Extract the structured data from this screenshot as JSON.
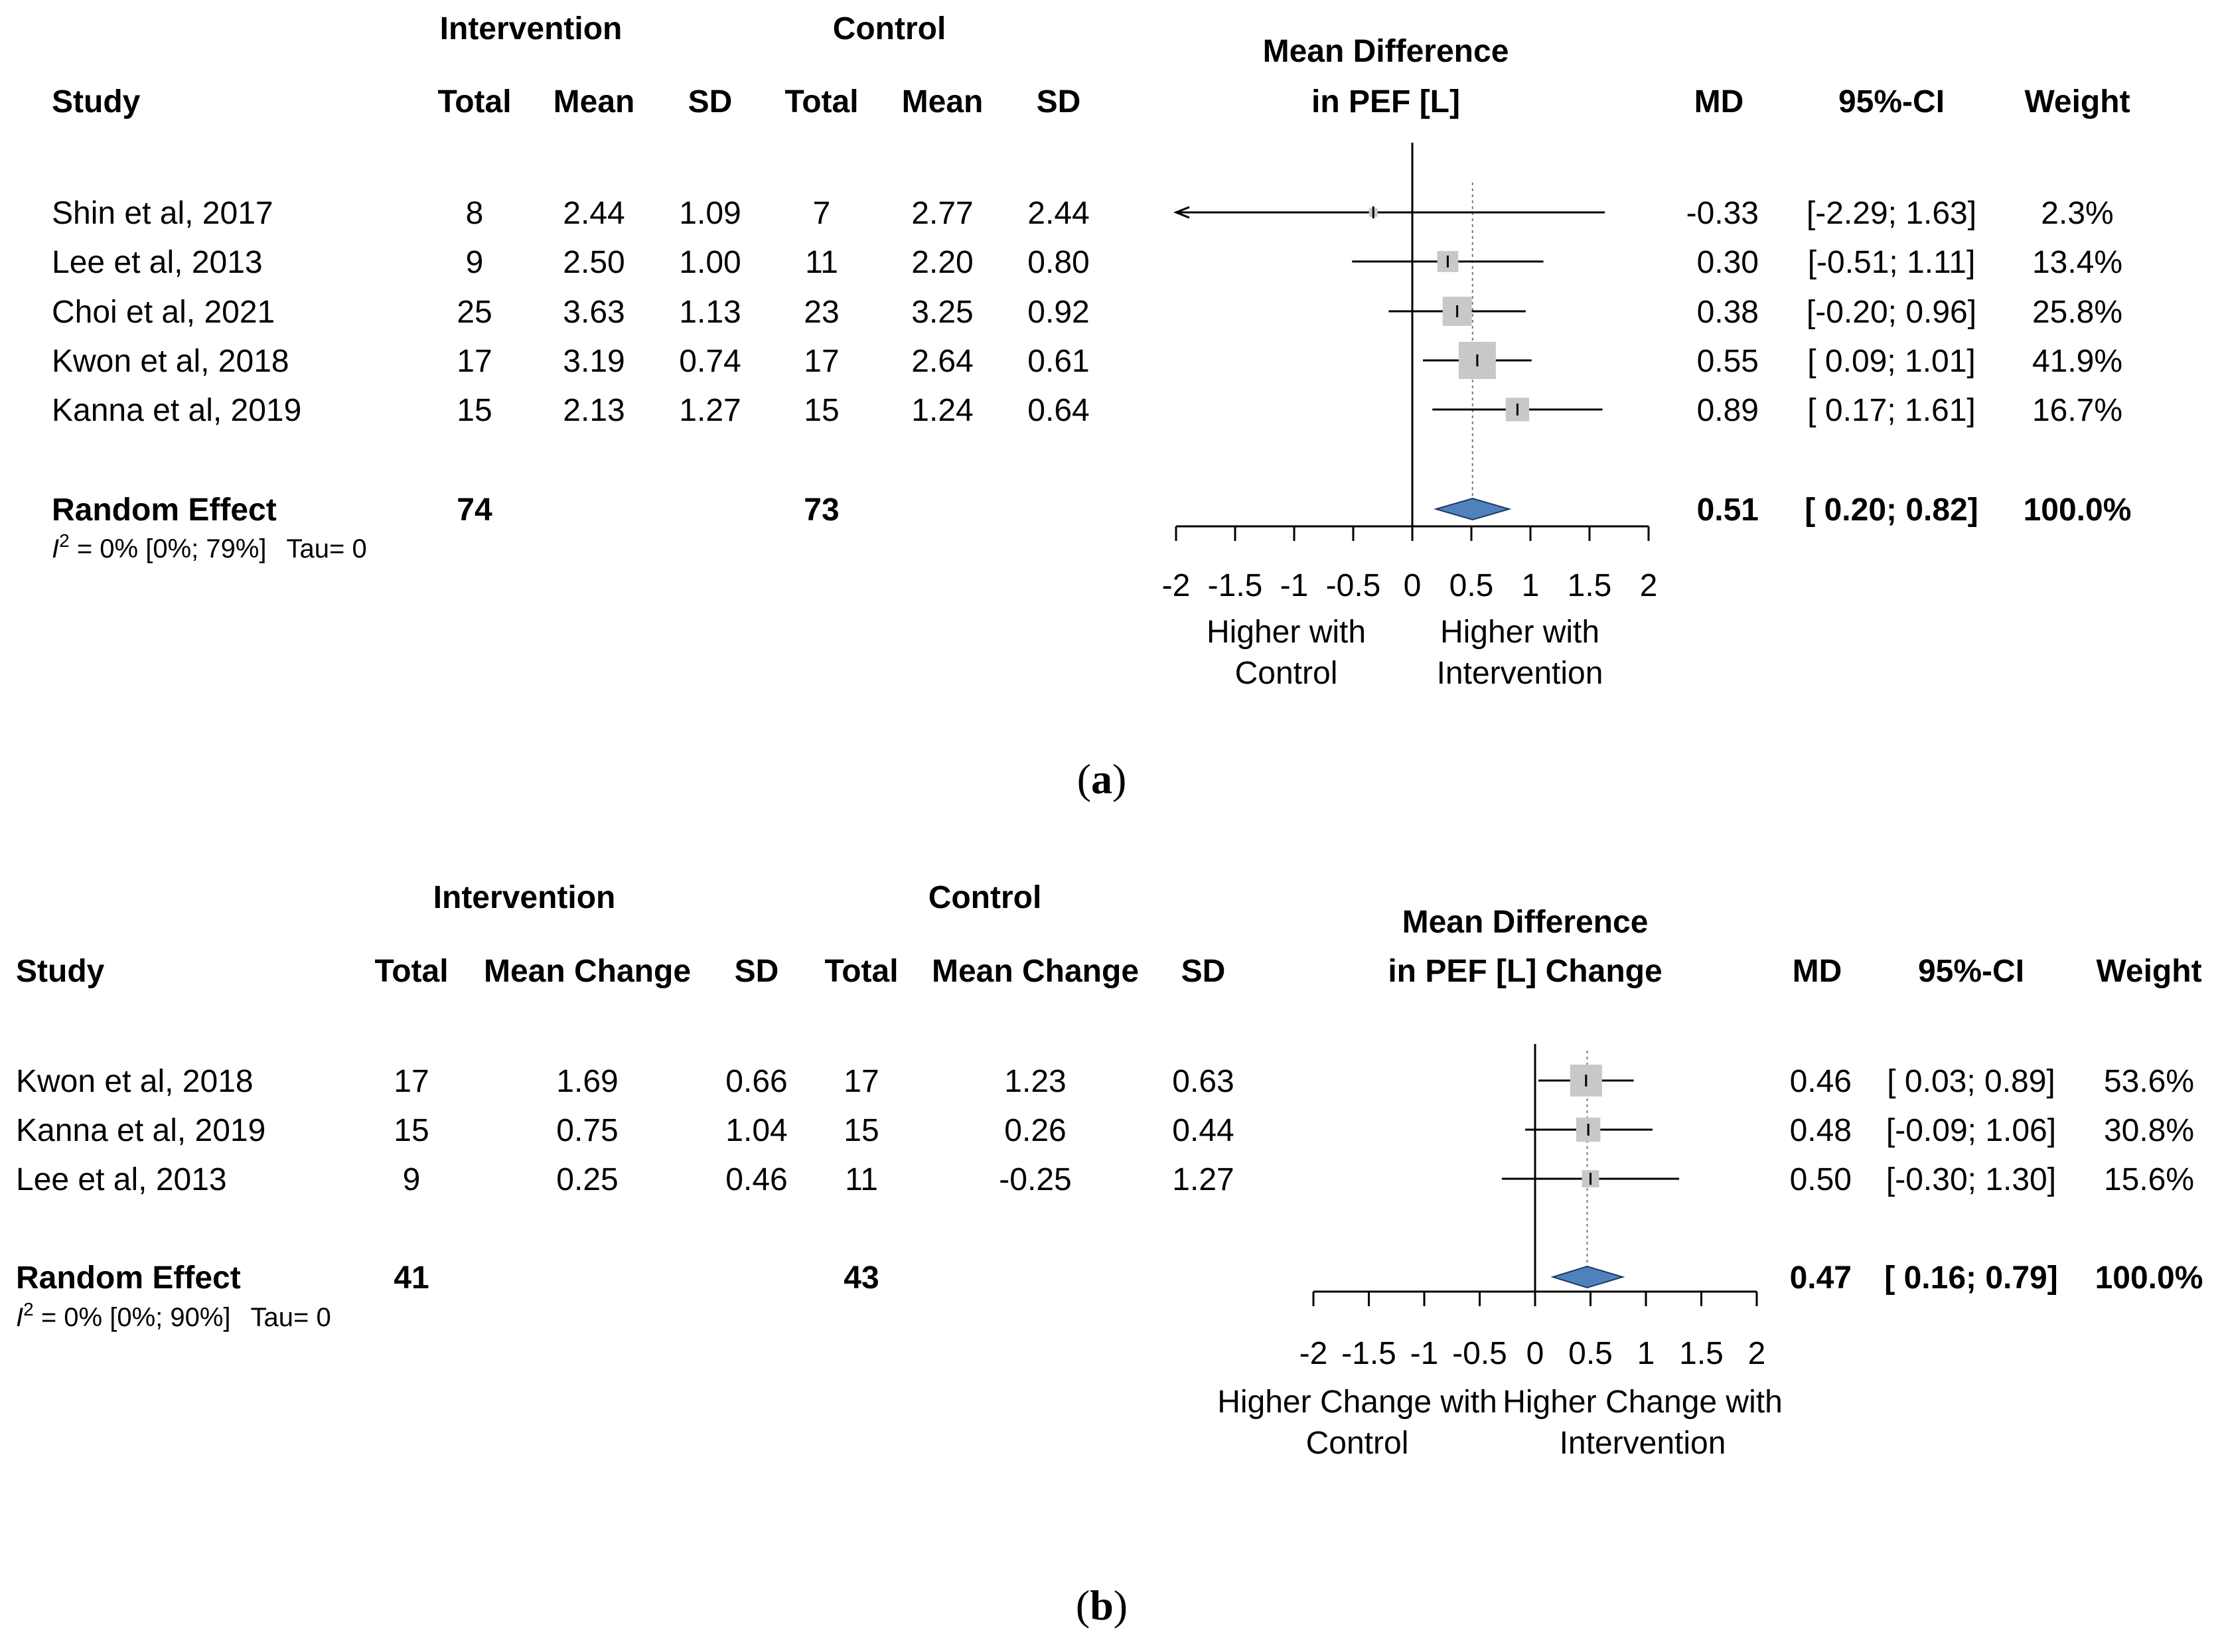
{
  "chart_data": [
    {
      "type": "forest",
      "panel": "a",
      "panel_label": {
        "open": "(",
        "letter": "a",
        "close": ")"
      },
      "group_headers": [
        "Intervention",
        "Control"
      ],
      "columns": [
        "Study",
        "Total",
        "Mean",
        "SD",
        "Total",
        "Mean",
        "SD"
      ],
      "plot_title": [
        "Mean Difference",
        "in PEF [L]"
      ],
      "result_headers": [
        "MD",
        "95%-CI",
        "Weight"
      ],
      "studies": [
        {
          "name": "Shin et al, 2017",
          "i_total": "8",
          "i_mean": "2.44",
          "i_sd": "1.09",
          "c_total": "7",
          "c_mean": "2.77",
          "c_sd": "2.44",
          "md": -0.33,
          "lo": -2.29,
          "hi": 1.63,
          "weight": 2.3,
          "md_text": "-0.33",
          "ci_text": "[-2.29; 1.63]",
          "weight_text": "2.3%"
        },
        {
          "name": "Lee et al, 2013",
          "i_total": "9",
          "i_mean": "2.50",
          "i_sd": "1.00",
          "c_total": "11",
          "c_mean": "2.20",
          "c_sd": "0.80",
          "md": 0.3,
          "lo": -0.51,
          "hi": 1.11,
          "weight": 13.4,
          "md_text": "0.30",
          "ci_text": "[-0.51; 1.11]",
          "weight_text": "13.4%"
        },
        {
          "name": "Choi et al, 2021",
          "i_total": "25",
          "i_mean": "3.63",
          "i_sd": "1.13",
          "c_total": "23",
          "c_mean": "3.25",
          "c_sd": "0.92",
          "md": 0.38,
          "lo": -0.2,
          "hi": 0.96,
          "weight": 25.8,
          "md_text": "0.38",
          "ci_text": "[-0.20; 0.96]",
          "weight_text": "25.8%"
        },
        {
          "name": "Kwon et al, 2018",
          "i_total": "17",
          "i_mean": "3.19",
          "i_sd": "0.74",
          "c_total": "17",
          "c_mean": "2.64",
          "c_sd": "0.61",
          "md": 0.55,
          "lo": 0.09,
          "hi": 1.01,
          "weight": 41.9,
          "md_text": "0.55",
          "ci_text": "[ 0.09; 1.01]",
          "weight_text": "41.9%"
        },
        {
          "name": "Kanna et al, 2019",
          "i_total": "15",
          "i_mean": "2.13",
          "i_sd": "1.27",
          "c_total": "15",
          "c_mean": "1.24",
          "c_sd": "0.64",
          "md": 0.89,
          "lo": 0.17,
          "hi": 1.61,
          "weight": 16.7,
          "md_text": "0.89",
          "ci_text": "[ 0.17; 1.61]",
          "weight_text": "16.7%"
        }
      ],
      "pooled": {
        "name": "Random Effect",
        "i_total": "74",
        "c_total": "73",
        "md": 0.51,
        "lo": 0.2,
        "hi": 0.82,
        "md_text": "0.51",
        "ci_text": "[ 0.20; 0.82]",
        "weight_text": "100.0%"
      },
      "heterogeneity": {
        "symbol": "I",
        "exp": "2",
        "rest": " = 0% [0%; 79%]",
        "tau": "Tau= 0"
      },
      "xlim": [
        -2,
        2
      ],
      "xticks": [
        -2,
        -1.5,
        -1,
        -0.5,
        0,
        0.5,
        1,
        1.5,
        2
      ],
      "xtick_labels": [
        "-2",
        "-1.5",
        "-1",
        "-0.5",
        "0",
        "0.5",
        "1",
        "1.5",
        "2"
      ],
      "left_label": [
        "Higher with",
        "Control"
      ],
      "right_label": [
        "Higher with",
        "Intervention"
      ]
    },
    {
      "type": "forest",
      "panel": "b",
      "panel_label": {
        "open": "(",
        "letter": "b",
        "close": ")"
      },
      "group_headers": [
        "Intervention",
        "Control"
      ],
      "columns": [
        "Study",
        "Total",
        "Mean Change",
        "SD",
        "Total",
        "Mean Change",
        "SD"
      ],
      "plot_title": [
        "Mean Difference",
        "in PEF [L] Change"
      ],
      "result_headers": [
        "MD",
        "95%-CI",
        "Weight"
      ],
      "studies": [
        {
          "name": "Kwon et al, 2018",
          "i_total": "17",
          "i_mean": "1.69",
          "i_sd": "0.66",
          "c_total": "17",
          "c_mean": "1.23",
          "c_sd": "0.63",
          "md": 0.46,
          "lo": 0.03,
          "hi": 0.89,
          "weight": 53.6,
          "md_text": "0.46",
          "ci_text": "[ 0.03; 0.89]",
          "weight_text": "53.6%"
        },
        {
          "name": "Kanna et al, 2019",
          "i_total": "15",
          "i_mean": "0.75",
          "i_sd": "1.04",
          "c_total": "15",
          "c_mean": "0.26",
          "c_sd": "0.44",
          "md": 0.48,
          "lo": -0.09,
          "hi": 1.06,
          "weight": 30.8,
          "md_text": "0.48",
          "ci_text": "[-0.09; 1.06]",
          "weight_text": "30.8%"
        },
        {
          "name": "Lee et al, 2013",
          "i_total": "9",
          "i_mean": "0.25",
          "i_sd": "0.46",
          "c_total": "11",
          "c_mean": "-0.25",
          "c_sd": "1.27",
          "md": 0.5,
          "lo": -0.3,
          "hi": 1.3,
          "weight": 15.6,
          "md_text": "0.50",
          "ci_text": "[-0.30; 1.30]",
          "weight_text": "15.6%"
        }
      ],
      "pooled": {
        "name": "Random Effect",
        "i_total": "41",
        "c_total": "43",
        "md": 0.47,
        "lo": 0.16,
        "hi": 0.79,
        "md_text": "0.47",
        "ci_text": "[ 0.16; 0.79]",
        "weight_text": "100.0%"
      },
      "heterogeneity": {
        "symbol": "I",
        "exp": "2",
        "rest": " = 0% [0%; 90%]",
        "tau": "Tau= 0"
      },
      "xlim": [
        -2,
        2
      ],
      "xticks": [
        -2,
        -1.5,
        -1,
        -0.5,
        0,
        0.5,
        1,
        1.5,
        2
      ],
      "xtick_labels": [
        "-2",
        "-1.5",
        "-1",
        "-0.5",
        "0",
        "0.5",
        "1",
        "1.5",
        "2"
      ],
      "left_label": [
        "Higher Change with",
        "Control"
      ],
      "right_label": [
        "Higher Change with",
        "Intervention"
      ]
    }
  ],
  "colors": {
    "diamond_fill": "#4f81bd",
    "diamond_stroke": "#1f3864",
    "square_fill": "#c8c8c8",
    "line": "#000000"
  }
}
